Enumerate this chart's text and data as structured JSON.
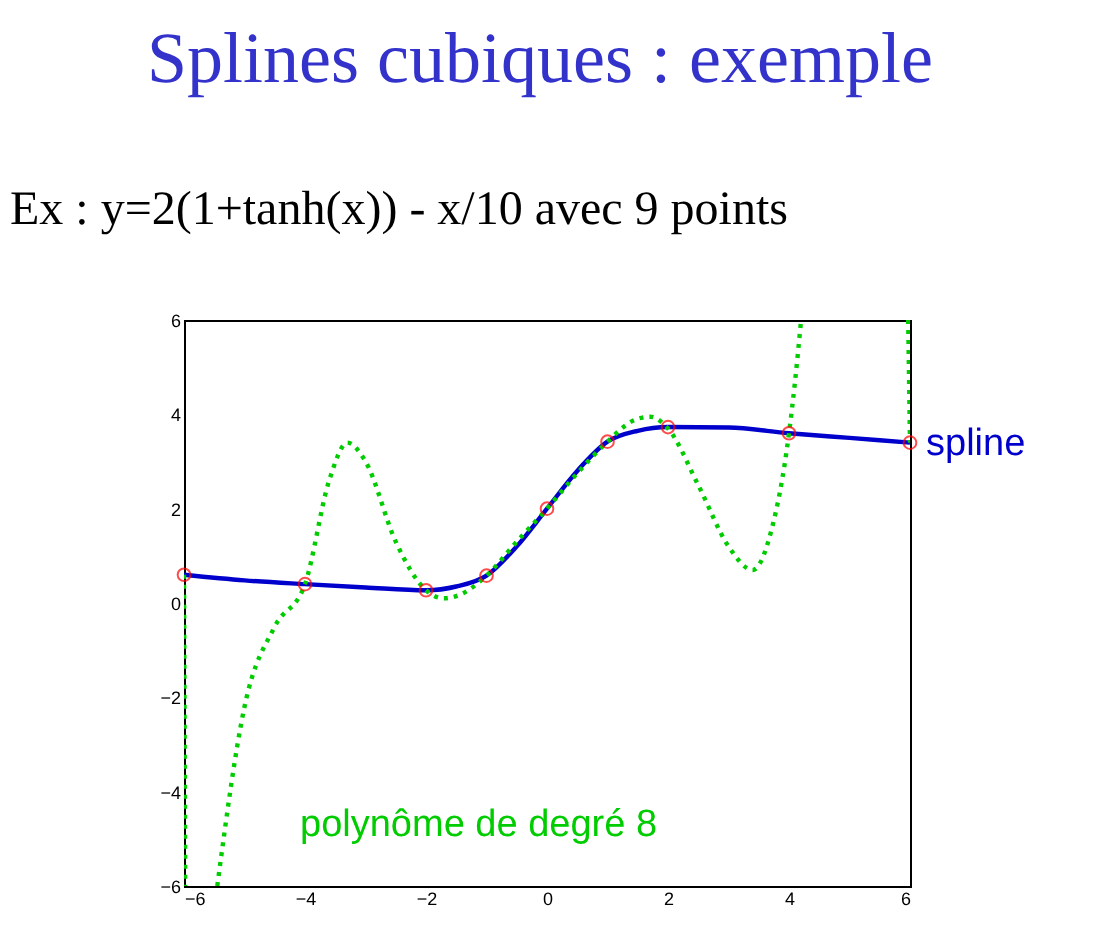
{
  "chart_data": {
    "type": "line",
    "title": "Splines cubiques : exemple",
    "subtitle": "Ex : y=2(1+tanh(x)) - x/10     avec 9 points",
    "xlim": [
      -6,
      6
    ],
    "ylim": [
      -6,
      6
    ],
    "xticks": [
      -6,
      -4,
      -2,
      0,
      2,
      4,
      6
    ],
    "yticks": [
      -6,
      -4,
      -2,
      0,
      2,
      4,
      6
    ],
    "grid": false,
    "series": [
      {
        "name": "spline",
        "color": "#0000cc",
        "marker": "none",
        "line_style": "solid",
        "x": [
          -6,
          -5,
          -4,
          -3,
          -2,
          -1.5,
          -1,
          -0.5,
          0,
          0.5,
          1,
          1.5,
          2,
          3,
          4,
          5,
          6
        ],
        "values": [
          0.6,
          0.48,
          0.4,
          0.33,
          0.27,
          0.35,
          0.58,
          1.2,
          2.0,
          2.8,
          3.42,
          3.65,
          3.73,
          3.72,
          3.6,
          3.5,
          3.4
        ]
      },
      {
        "name": "polynôme de degré 8",
        "color": "#00cc00",
        "marker": "none",
        "line_style": "dotted",
        "x": [
          -6,
          -5.98,
          -5.6,
          -5.45,
          -5,
          -4.5,
          -4,
          -3.6,
          -3.3,
          -3,
          -2.5,
          -2,
          -1.7,
          -1.4,
          -1,
          -0.5,
          0,
          0.5,
          1,
          1.4,
          1.7,
          2,
          2.5,
          3,
          3.4,
          3.7,
          4,
          4.1,
          4.2,
          4.3,
          5.97,
          6
        ],
        "values": [
          0.6,
          -6,
          null,
          -6,
          -2.2,
          -0.5,
          0.4,
          2.6,
          3.4,
          3.0,
          1.3,
          0.27,
          0.1,
          0.2,
          0.58,
          1.3,
          2.0,
          2.75,
          3.42,
          3.85,
          3.95,
          3.7,
          2.5,
          1.2,
          0.7,
          1.5,
          3.6,
          4.7,
          6,
          null,
          6,
          3.4
        ]
      },
      {
        "type": "scatter",
        "color": "#ff0000",
        "marker": "circle",
        "x": [
          -6,
          -4,
          -2,
          -1,
          0,
          1,
          2,
          4,
          6
        ],
        "values": [
          0.6,
          0.4,
          0.27,
          0.58,
          2.0,
          3.42,
          3.73,
          3.6,
          3.4
        ]
      }
    ]
  }
}
